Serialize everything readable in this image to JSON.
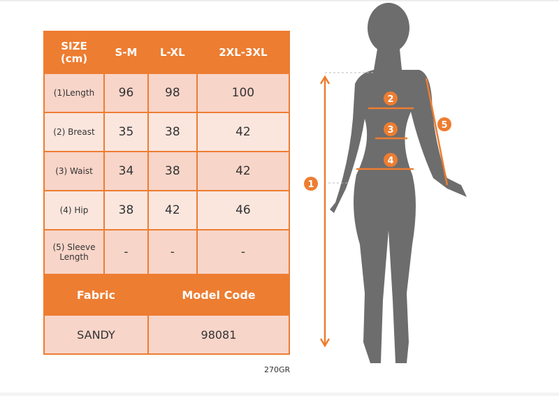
{
  "table": {
    "header": [
      "SIZE\n(cm)",
      "S-M",
      "L-XL",
      "2XL-3XL"
    ],
    "header_line1": "SIZE",
    "header_line2": "(cm)",
    "rows": [
      {
        "label": "(1)Length",
        "values": [
          "96",
          "98",
          "100"
        ]
      },
      {
        "label": "(2) Breast",
        "values": [
          "35",
          "38",
          "42"
        ]
      },
      {
        "label": "(3) Waist",
        "values": [
          "34",
          "38",
          "42"
        ]
      },
      {
        "label": "(4) Hip",
        "values": [
          "38",
          "42",
          "46"
        ]
      },
      {
        "label_line1": "(5) Sleeve",
        "label_line2": "Length",
        "values": [
          "-",
          "-",
          "-"
        ]
      }
    ],
    "fabric_label": "Fabric",
    "model_code_label": "Model Code",
    "fabric_value": "SANDY",
    "model_code_value": "98081"
  },
  "weight_note": "270GR",
  "figure": {
    "markers": [
      "1",
      "2",
      "3",
      "4",
      "5"
    ],
    "accent_color": "#ED7D31",
    "silhouette_color": "#6d6d6d"
  }
}
